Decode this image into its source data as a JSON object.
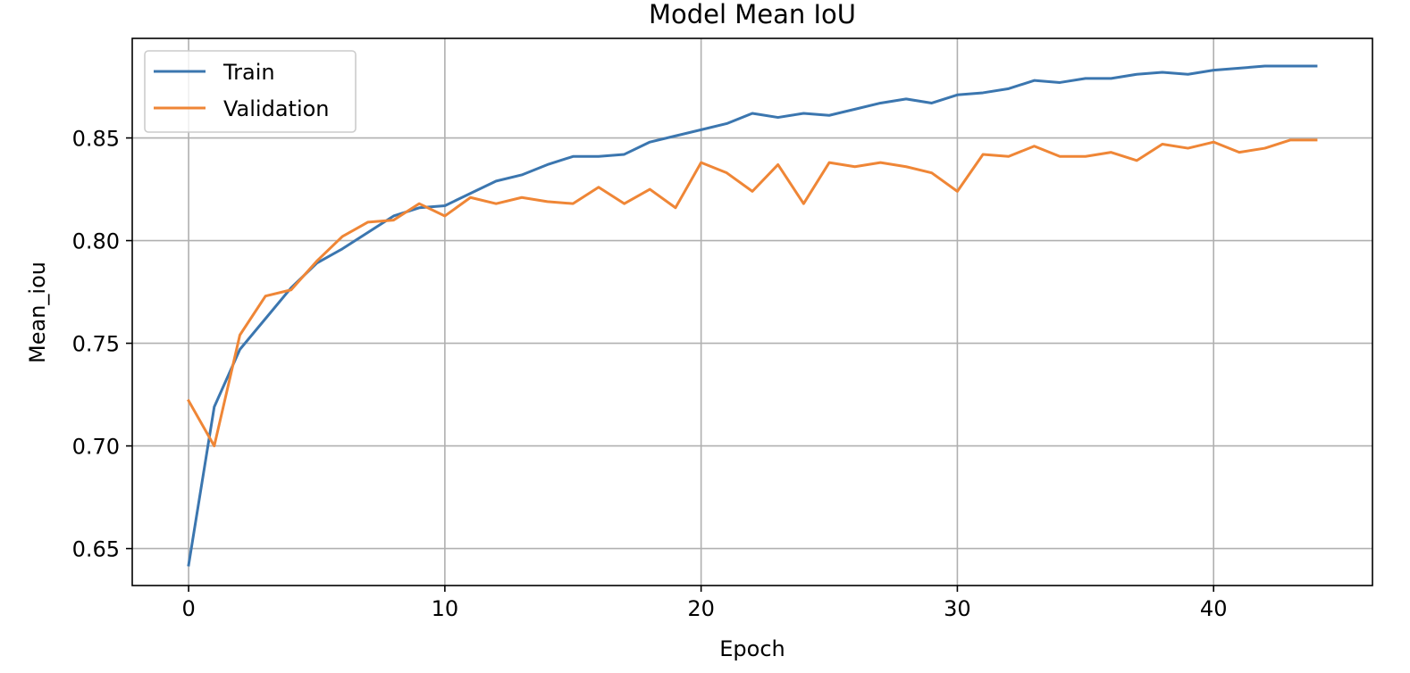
{
  "chart_data": {
    "type": "line",
    "title": "Model Mean IoU",
    "xlabel": "Epoch",
    "ylabel": "Mean_iou",
    "xlim": [
      -2.2,
      46.2
    ],
    "ylim": [
      0.632,
      0.8985
    ],
    "xticks": [
      0,
      10,
      20,
      30,
      40
    ],
    "yticks": [
      0.65,
      0.7,
      0.75,
      0.8,
      0.85
    ],
    "ytick_labels": [
      "0.65",
      "0.70",
      "0.75",
      "0.80",
      "0.85"
    ],
    "grid": true,
    "legend_position": "upper left",
    "x": [
      0,
      1,
      2,
      3,
      4,
      5,
      6,
      7,
      8,
      9,
      10,
      11,
      12,
      13,
      14,
      15,
      16,
      17,
      18,
      19,
      20,
      21,
      22,
      23,
      24,
      25,
      26,
      27,
      28,
      29,
      30,
      31,
      32,
      33,
      34,
      35,
      36,
      37,
      38,
      39,
      40,
      41,
      42,
      43,
      44
    ],
    "series": [
      {
        "name": "Train",
        "color": "#3b76af",
        "values": [
          0.642,
          0.719,
          0.747,
          0.762,
          0.777,
          0.789,
          0.796,
          0.804,
          0.812,
          0.816,
          0.817,
          0.823,
          0.829,
          0.832,
          0.837,
          0.841,
          0.841,
          0.842,
          0.848,
          0.851,
          0.854,
          0.857,
          0.862,
          0.86,
          0.862,
          0.861,
          0.864,
          0.867,
          0.869,
          0.867,
          0.871,
          0.872,
          0.874,
          0.878,
          0.877,
          0.879,
          0.879,
          0.881,
          0.882,
          0.881,
          0.883,
          0.884,
          0.885,
          0.885,
          0.885
        ]
      },
      {
        "name": "Validation",
        "color": "#ef8636",
        "values": [
          0.722,
          0.7,
          0.754,
          0.773,
          0.776,
          0.79,
          0.802,
          0.809,
          0.81,
          0.818,
          0.812,
          0.821,
          0.818,
          0.821,
          0.819,
          0.818,
          0.826,
          0.818,
          0.825,
          0.816,
          0.838,
          0.833,
          0.824,
          0.837,
          0.818,
          0.838,
          0.836,
          0.838,
          0.836,
          0.833,
          0.824,
          0.842,
          0.841,
          0.846,
          0.841,
          0.841,
          0.843,
          0.839,
          0.847,
          0.845,
          0.848,
          0.843,
          0.845,
          0.849,
          0.849
        ]
      }
    ]
  }
}
